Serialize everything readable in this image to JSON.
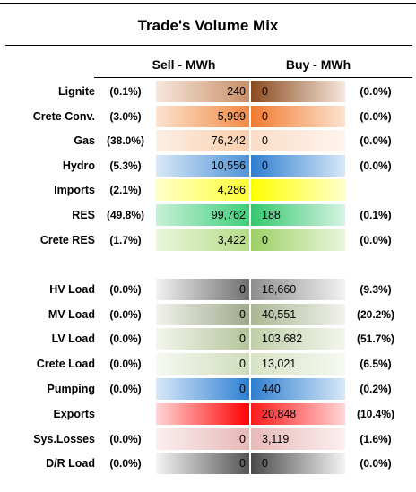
{
  "title": "Trade's Volume Mix",
  "headers": {
    "sell": "Sell - MWh",
    "buy": "Buy - MWh"
  },
  "rows": [
    {
      "label": "Lignite",
      "sell_pct": "(0.1%)",
      "sell": "240",
      "buy": "0",
      "buy_pct": "(0.0%)",
      "sell_grad": "linear-gradient(to left,#c98f67,#f6e7dc)",
      "buy_grad": "linear-gradient(to right,#8a4a1e,#f6e7dc)"
    },
    {
      "label": "Crete Conv.",
      "sell_pct": "(3.0%)",
      "sell": "5,999",
      "buy": "0",
      "buy_pct": "(0.0%)",
      "sell_grad": "linear-gradient(to left,#f08a45,#fde3cf)",
      "buy_grad": "linear-gradient(to right,#f07a2e,#fde3cf)"
    },
    {
      "label": "Gas",
      "sell_pct": "(38.0%)",
      "sell": "76,242",
      "buy": "0",
      "buy_pct": "(0.0%)",
      "sell_grad": "linear-gradient(to left,#f9cfae,#fdeee3)",
      "buy_grad": "linear-gradient(to right,#fbdcc6,#fff5ee)"
    },
    {
      "label": "Hydro",
      "sell_pct": "(5.3%)",
      "sell": "10,556",
      "buy": "0",
      "buy_pct": "(0.0%)",
      "sell_grad": "linear-gradient(to left,#4f93d6,#d8e8f7)",
      "buy_grad": "linear-gradient(to right,#2f7ed1,#d8e8f7)"
    },
    {
      "label": "Imports",
      "sell_pct": "(2.1%)",
      "sell": "4,286",
      "buy": "",
      "buy_pct": "",
      "sell_grad": "linear-gradient(to left,#ffff33,#ffffcc)",
      "buy_grad": "linear-gradient(to right,#ffff00,#ffffcc)"
    },
    {
      "label": "RES",
      "sell_pct": "(49.8%)",
      "sell": "99,762",
      "buy": "188",
      "buy_pct": "(0.1%)",
      "sell_grad": "linear-gradient(to left,#3ecf7a,#c9f0d8)",
      "buy_grad": "linear-gradient(to right,#34c76e,#d6f4e2)"
    },
    {
      "label": "Crete RES",
      "sell_pct": "(1.7%)",
      "sell": "3,422",
      "buy": "0",
      "buy_pct": "(0.0%)",
      "sell_grad": "linear-gradient(to left,#b5dc88,#eaf6dd)",
      "buy_grad": "linear-gradient(to right,#9cd065,#eaf6dd)"
    },
    {
      "label": "HV Load",
      "sell_pct": "(0.0%)",
      "sell": "0",
      "buy": "18,660",
      "buy_pct": "(9.3%)",
      "sell_grad": "linear-gradient(to left,#6f6f6f,#f2f2f2)",
      "buy_grad": "linear-gradient(to right,#8e8e8e,#f2f2f2)"
    },
    {
      "label": "MV Load",
      "sell_pct": "(0.0%)",
      "sell": "0",
      "buy": "40,551",
      "buy_pct": "(20.2%)",
      "sell_grad": "linear-gradient(to left,#9fa88a,#f1f3ec)",
      "buy_grad": "linear-gradient(to right,#aab693,#f1f3ec)"
    },
    {
      "label": "LV Load",
      "sell_pct": "(0.0%)",
      "sell": "0",
      "buy": "103,682",
      "buy_pct": "(51.7%)",
      "sell_grad": "linear-gradient(to left,#b5c49a,#f3f6ee)",
      "buy_grad": "linear-gradient(to right,#c1cfa8,#f3f6ee)"
    },
    {
      "label": "Crete Load",
      "sell_pct": "(0.0%)",
      "sell": "0",
      "buy": "13,021",
      "buy_pct": "(6.5%)",
      "sell_grad": "linear-gradient(to left,#cfdcbb,#f6f9f2)",
      "buy_grad": "linear-gradient(to right,#d7e3c5,#f6f9f2)"
    },
    {
      "label": "Pumping",
      "sell_pct": "(0.0%)",
      "sell": "0",
      "buy": "440",
      "buy_pct": "(0.2%)",
      "sell_grad": "linear-gradient(to left,#2e7fd4,#d8e8f7)",
      "buy_grad": "linear-gradient(to right,#2f7ed1,#d8e8f7)"
    },
    {
      "label": "Exports",
      "sell_pct": "",
      "sell": "",
      "buy": "20,848",
      "buy_pct": "(10.4%)",
      "sell_grad": "linear-gradient(to left,#ff0000,#ffd6d6)",
      "buy_grad": "linear-gradient(to right,#ff1a1a,#ffd6d6)"
    },
    {
      "label": "Sys.Losses",
      "sell_pct": "(0.0%)",
      "sell": "0",
      "buy": "3,119",
      "buy_pct": "(1.6%)",
      "sell_grad": "linear-gradient(to left,#e7b7b7,#fbf0f0)",
      "buy_grad": "linear-gradient(to right,#e8b9b9,#fbf0f0)"
    },
    {
      "label": "D/R Load",
      "sell_pct": "(0.0%)",
      "sell": "0",
      "buy": "0",
      "buy_pct": "(0.0%)",
      "sell_grad": "linear-gradient(to left,#555555,#f4f4f4)",
      "buy_grad": "linear-gradient(to right,#4a4a4a,#f4f4f4)"
    }
  ]
}
